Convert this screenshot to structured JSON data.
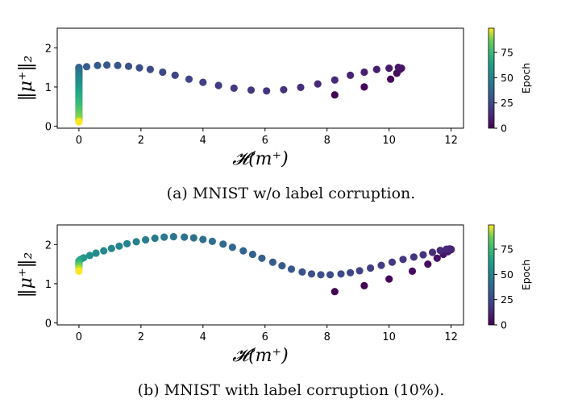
{
  "panel_a": {
    "caption": "(a) MNIST w/o label corruption."
  },
  "panel_b": {
    "caption": "(b) MNIST with label corruption (10%)."
  },
  "chart_data": [
    {
      "type": "scatter",
      "title": "",
      "xlabel": "𝓗(m⁺)",
      "ylabel": "‖μ⁺‖₂",
      "xlim": [
        -0.7,
        12.4
      ],
      "ylim": [
        -0.05,
        2.5
      ],
      "xticks": [
        0,
        2,
        4,
        6,
        8,
        10,
        12
      ],
      "yticks": [
        0,
        1,
        2
      ],
      "grid": false,
      "colorbar": {
        "label": "Epoch",
        "range": [
          0,
          99
        ],
        "ticks": [
          0,
          25,
          50,
          75
        ],
        "colormap": "viridis"
      },
      "series": [
        {
          "x": [
            8.25,
            9.2,
            10.05,
            10.25,
            10.35,
            10.4,
            10.3,
            10.0,
            9.6,
            9.2,
            8.75,
            8.25,
            7.7,
            7.15,
            6.6,
            6.05,
            5.55,
            5.0,
            4.5,
            4.0,
            3.55,
            3.1,
            2.7,
            2.3,
            1.95,
            1.6,
            1.25,
            0.9,
            0.6,
            0.25,
            0,
            0,
            0,
            0,
            0,
            0,
            0,
            0,
            0,
            0,
            0,
            0,
            0,
            0,
            0,
            0,
            0,
            0,
            0,
            0,
            0,
            0,
            0,
            0,
            0,
            0,
            0,
            0,
            0,
            0,
            0,
            0,
            0,
            0,
            0,
            0
          ],
          "y": [
            0.8,
            1.0,
            1.2,
            1.35,
            1.45,
            1.48,
            1.5,
            1.48,
            1.45,
            1.38,
            1.3,
            1.18,
            1.08,
            0.99,
            0.93,
            0.9,
            0.92,
            0.97,
            1.04,
            1.12,
            1.2,
            1.3,
            1.38,
            1.45,
            1.49,
            1.53,
            1.55,
            1.56,
            1.55,
            1.52,
            1.5,
            1.47,
            1.44,
            1.41,
            1.38,
            1.35,
            1.31,
            1.28,
            1.24,
            1.2,
            1.15,
            1.1,
            1.05,
            1.0,
            0.95,
            0.9,
            0.85,
            0.8,
            0.75,
            0.7,
            0.65,
            0.6,
            0.55,
            0.5,
            0.45,
            0.4,
            0.35,
            0.3,
            0.27,
            0.24,
            0.21,
            0.18,
            0.16,
            0.14,
            0.12,
            0.11
          ],
          "epoch": [
            0,
            1,
            2,
            3,
            4,
            5,
            6,
            7,
            8,
            9,
            10,
            11,
            12,
            13,
            14,
            15,
            16,
            17,
            18,
            19,
            20,
            21,
            22,
            23,
            24,
            25,
            26,
            27,
            28,
            29,
            30,
            32,
            33,
            35,
            37,
            38,
            40,
            41,
            43,
            45,
            46,
            48,
            50,
            51,
            53,
            55,
            56,
            58,
            60,
            61,
            63,
            65,
            66,
            68,
            70,
            71,
            73,
            75,
            76,
            78,
            80,
            81,
            83,
            86,
            91,
            99
          ]
        }
      ]
    },
    {
      "type": "scatter",
      "title": "",
      "xlabel": "𝓗(m⁺)",
      "ylabel": "‖μ⁺‖₂",
      "xlim": [
        -0.7,
        12.4
      ],
      "ylim": [
        -0.05,
        2.5
      ],
      "xticks": [
        0,
        2,
        4,
        6,
        8,
        10,
        12
      ],
      "yticks": [
        0,
        1,
        2
      ],
      "grid": false,
      "colorbar": {
        "label": "Epoch",
        "range": [
          0,
          99
        ],
        "ticks": [
          0,
          25,
          50,
          75
        ],
        "colormap": "viridis"
      },
      "series": [
        {
          "x": [
            8.25,
            9.2,
            10.0,
            10.75,
            11.25,
            11.55,
            11.75,
            11.9,
            12.0,
            12.0,
            11.95,
            11.85,
            11.65,
            11.4,
            11.1,
            10.8,
            10.45,
            10.1,
            9.75,
            9.4,
            9.05,
            8.75,
            8.45,
            8.1,
            7.8,
            7.5,
            7.2,
            6.85,
            6.55,
            6.25,
            5.9,
            5.6,
            5.3,
            4.95,
            4.65,
            4.3,
            4.0,
            3.7,
            3.4,
            3.05,
            2.75,
            2.45,
            2.15,
            1.85,
            1.55,
            1.3,
            1.05,
            0.8,
            0.55,
            0.35,
            0.15,
            0.05,
            0,
            0,
            0,
            0,
            0,
            0,
            0
          ],
          "y": [
            0.8,
            0.95,
            1.12,
            1.32,
            1.5,
            1.65,
            1.75,
            1.82,
            1.87,
            1.88,
            1.89,
            1.88,
            1.85,
            1.8,
            1.74,
            1.68,
            1.62,
            1.55,
            1.47,
            1.4,
            1.33,
            1.28,
            1.25,
            1.23,
            1.23,
            1.25,
            1.3,
            1.37,
            1.46,
            1.55,
            1.65,
            1.75,
            1.84,
            1.93,
            2.01,
            2.08,
            2.13,
            2.17,
            2.19,
            2.2,
            2.19,
            2.16,
            2.12,
            2.07,
            2.02,
            1.96,
            1.9,
            1.84,
            1.78,
            1.72,
            1.66,
            1.62,
            1.58,
            1.55,
            1.51,
            1.47,
            1.43,
            1.38,
            1.32
          ],
          "epoch": [
            0,
            1,
            2,
            3,
            4,
            5,
            6,
            7,
            8,
            9,
            10,
            11,
            12,
            13,
            14,
            15,
            16,
            17,
            18,
            19,
            20,
            21,
            22,
            23,
            24,
            25,
            26,
            27,
            28,
            29,
            30,
            31,
            32,
            33,
            34,
            35,
            36,
            37,
            38,
            39,
            40,
            41,
            42,
            43,
            44,
            45,
            46,
            47,
            48,
            50,
            52,
            55,
            58,
            62,
            67,
            72,
            79,
            88,
            99
          ]
        }
      ]
    }
  ]
}
